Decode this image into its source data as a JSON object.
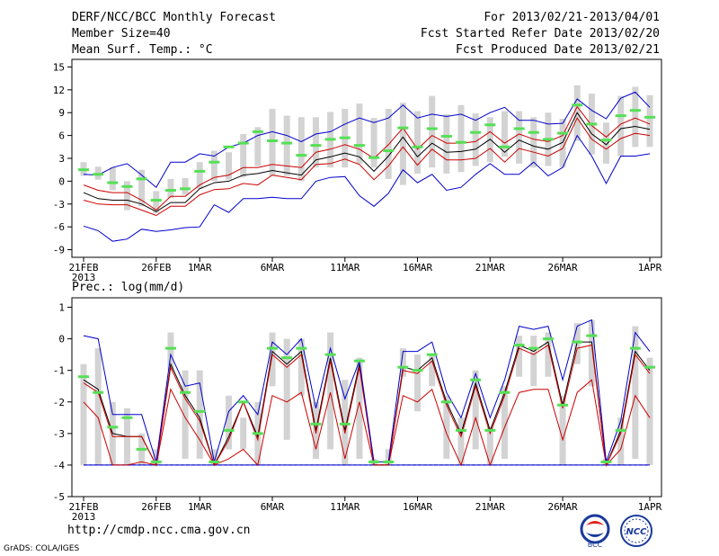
{
  "header": {
    "title": "DERF/NCC/BCC Monthly Forecast",
    "member_size": "Member Size=40",
    "variable": "Mean Surf. Temp.: °C",
    "for_period": "For 2013/02/21-2013/04/01",
    "fcst_started": "Fcst Started Refer Date 2013/02/20",
    "fcst_produced": "Fcst Produced Date 2013/02/21"
  },
  "footer": {
    "url": "http://cmdp.ncc.cma.gov.cn",
    "grads_credit": "GrADS: COLA/IGES",
    "logo_left_text": "BCC",
    "logo_right_text": "NCC"
  },
  "colors": {
    "box": "#d3d3d3",
    "median": "#55e055",
    "envelope": "#0000cc",
    "quartile": "#cc0000",
    "mean": "#000000",
    "baseline": "#0000cc"
  },
  "chart_data": [
    {
      "type": "box-ensemble",
      "title": "Mean Surf. Temp.: °C",
      "ylim": [
        -10,
        16
      ],
      "yticks": [
        -9,
        -6,
        -3,
        0,
        3,
        6,
        9,
        12,
        15
      ],
      "xlim": [
        0,
        40
      ],
      "xticks": [
        {
          "day": 0,
          "label": "21FEB",
          "sub": "2013"
        },
        {
          "day": 5,
          "label": "26FEB"
        },
        {
          "day": 8,
          "label": "1MAR"
        },
        {
          "day": 13,
          "label": "6MAR"
        },
        {
          "day": 18,
          "label": "11MAR"
        },
        {
          "day": 23,
          "label": "16MAR"
        },
        {
          "day": 28,
          "label": "21MAR"
        },
        {
          "day": 33,
          "label": "26MAR"
        },
        {
          "day": 39,
          "label": "1APR"
        }
      ],
      "box_low": [
        0.7,
        0.2,
        -1.2,
        -3.8,
        -3.3,
        -4.2,
        -2.2,
        -1.8,
        -1.0,
        0.0,
        0.2,
        0.5,
        2.0,
        0.7,
        0.7,
        0.0,
        1.8,
        1.8,
        1.8,
        2.3,
        1.8,
        0.3,
        -0.5,
        1.0,
        1.8,
        1.0,
        1.2,
        2.0,
        2.5,
        3.2,
        2.3,
        1.8,
        2.0,
        1.8,
        5.3,
        3.5,
        2.3,
        3.3,
        4.5,
        4.5
      ],
      "box_high": [
        2.5,
        1.9,
        1.8,
        0.0,
        1.5,
        -1.3,
        0.3,
        0.4,
        2.5,
        4.0,
        3.8,
        6.2,
        7.1,
        9.5,
        8.6,
        8.4,
        8.4,
        9.1,
        9.5,
        10.2,
        8.3,
        9.5,
        10.3,
        9.2,
        11.2,
        8.8,
        10.0,
        8.9,
        8.4,
        9.2,
        9.2,
        8.4,
        9.0,
        8.2,
        12.6,
        11.5,
        7.7,
        11.2,
        12.4,
        11.3
      ],
      "median": [
        1.5,
        0.9,
        -0.2,
        -0.7,
        0.3,
        -2.5,
        -1.2,
        -1.0,
        1.3,
        2.5,
        4.5,
        5.0,
        6.5,
        5.3,
        5.0,
        3.4,
        4.7,
        5.5,
        5.7,
        4.7,
        3.1,
        4.0,
        7.0,
        4.5,
        6.9,
        5.9,
        5.1,
        6.4,
        7.4,
        4.5,
        6.9,
        6.4,
        5.5,
        6.3,
        10.0,
        7.5,
        5.4,
        8.6,
        9.3,
        8.4
      ],
      "max_env": [
        0.9,
        0.8,
        1.8,
        2.3,
        0.8,
        -0.8,
        2.5,
        2.5,
        3.6,
        3.3,
        4.5,
        5.0,
        6.0,
        6.5,
        6.0,
        5.2,
        6.2,
        6.5,
        7.5,
        8.3,
        7.7,
        8.3,
        10.0,
        8.3,
        8.8,
        8.5,
        8.8,
        8.0,
        9.0,
        9.7,
        8.0,
        8.0,
        7.5,
        7.6,
        10.8,
        9.3,
        8.2,
        10.9,
        11.7,
        9.7
      ],
      "upper_q": [
        -0.5,
        -1.2,
        -1.5,
        -1.5,
        -2.5,
        -3.8,
        -2.0,
        -2.0,
        -0.5,
        0.5,
        0.8,
        1.8,
        1.8,
        2.2,
        2.0,
        1.8,
        3.8,
        4.2,
        4.8,
        4.2,
        3.0,
        4.8,
        7.0,
        4.2,
        6.0,
        5.0,
        5.0,
        5.2,
        6.5,
        5.0,
        6.2,
        5.5,
        5.2,
        6.0,
        9.8,
        7.3,
        5.8,
        7.5,
        8.3,
        7.5
      ],
      "mean": [
        -1.5,
        -2.3,
        -2.5,
        -2.5,
        -3.0,
        -4.0,
        -2.8,
        -2.8,
        -1.0,
        -0.2,
        0.0,
        0.8,
        1.0,
        1.4,
        1.1,
        0.8,
        2.8,
        3.2,
        3.7,
        3.2,
        1.3,
        3.3,
        5.8,
        3.2,
        5.0,
        3.8,
        3.9,
        4.2,
        5.5,
        3.8,
        5.4,
        4.6,
        4.2,
        5.1,
        9.0,
        6.2,
        4.8,
        6.9,
        7.2,
        6.8
      ],
      "lower_q": [
        -2.5,
        -3.0,
        -3.1,
        -3.1,
        -3.8,
        -4.5,
        -3.3,
        -3.3,
        -1.8,
        -1.1,
        -1.0,
        -0.3,
        -0.5,
        0.8,
        0.5,
        0.2,
        2.2,
        2.3,
        2.9,
        2.2,
        0.2,
        2.0,
        4.5,
        2.1,
        4.2,
        2.8,
        2.8,
        3.0,
        4.3,
        2.5,
        4.3,
        3.8,
        3.3,
        4.3,
        8.3,
        5.5,
        4.2,
        5.6,
        6.3,
        6.0
      ],
      "min_env": [
        -5.9,
        -6.5,
        -7.9,
        -7.6,
        -6.3,
        -6.6,
        -6.4,
        -6.1,
        -6.0,
        -3.1,
        -4.1,
        -2.3,
        -2.3,
        -2.1,
        -2.3,
        -2.3,
        0.0,
        0.5,
        0.6,
        -1.9,
        -3.3,
        -1.6,
        1.5,
        -0.2,
        0.9,
        -1.2,
        -0.8,
        0.9,
        2.3,
        0.9,
        0.9,
        2.5,
        0.7,
        1.8,
        6.0,
        3.3,
        -0.3,
        3.3,
        3.3,
        3.6
      ]
    },
    {
      "type": "box-ensemble",
      "title": "Prec.: log(mm/d)",
      "ylim": [
        -5,
        1.3
      ],
      "yticks": [
        -5,
        -4,
        -3,
        -2,
        -1,
        0,
        1
      ],
      "xlim": [
        0,
        40
      ],
      "xticks": [
        {
          "day": 0,
          "label": "21FEB",
          "sub": "2013"
        },
        {
          "day": 5,
          "label": "26FEB"
        },
        {
          "day": 8,
          "label": "1MAR"
        },
        {
          "day": 13,
          "label": "6MAR"
        },
        {
          "day": 18,
          "label": "11MAR"
        },
        {
          "day": 23,
          "label": "16MAR"
        },
        {
          "day": 28,
          "label": "21MAR"
        },
        {
          "day": 33,
          "label": "26MAR"
        },
        {
          "day": 39,
          "label": "1APR"
        }
      ],
      "baseline": -4,
      "box_low": [
        -4,
        -4,
        -4,
        -4,
        -4,
        -4,
        -1.0,
        -3.8,
        -3.8,
        -4,
        -3.5,
        -3.5,
        -4,
        -1.5,
        -3.2,
        -1.8,
        -3.8,
        -3.5,
        -4,
        -3.8,
        -4,
        -4,
        -1.2,
        -2.3,
        -1.5,
        -3.8,
        -4,
        -3.5,
        -4,
        -3.8,
        -1.2,
        -1.5,
        -1.2,
        -4,
        -0.8,
        -1.5,
        -4,
        -4,
        -3.8,
        -4
      ],
      "box_high": [
        -0.8,
        -0.3,
        -2.0,
        -2.2,
        -3.0,
        -3.5,
        0.2,
        -1.0,
        -1.0,
        -3.5,
        -1.8,
        -2.5,
        -2.0,
        0.2,
        0.0,
        0.0,
        -2.0,
        0.2,
        -1.3,
        -0.6,
        -3.8,
        -3.5,
        -0.3,
        -0.5,
        -0.5,
        -1.8,
        -2.5,
        -1.0,
        -2.8,
        -1.5,
        0.1,
        0.1,
        0.2,
        -1.8,
        0.5,
        0.6,
        -3.8,
        -2.5,
        0.4,
        -0.6
      ],
      "median": [
        -1.2,
        -1.7,
        -2.8,
        -2.5,
        -3.5,
        -3.9,
        -0.3,
        -1.7,
        -2.3,
        -3.9,
        -2.9,
        -2.0,
        -3.0,
        -0.3,
        -0.6,
        -0.3,
        -2.7,
        -0.5,
        -2.7,
        -0.7,
        -3.9,
        -3.9,
        -0.9,
        -1.0,
        -0.5,
        -2.0,
        -2.9,
        -1.3,
        -2.9,
        -1.7,
        -0.2,
        -0.3,
        0.0,
        -2.1,
        -0.1,
        0.1,
        -3.9,
        -2.9,
        -0.3,
        -0.9
      ],
      "max_env": [
        0.1,
        0.0,
        -2.4,
        -2.4,
        -2.4,
        -3.9,
        -0.5,
        -1.5,
        -1.4,
        -3.9,
        -2.3,
        -1.8,
        -2.4,
        -0.1,
        -0.5,
        0.0,
        -2.2,
        -0.3,
        -1.9,
        -0.7,
        -3.9,
        -3.9,
        -0.4,
        -0.4,
        -0.1,
        -1.7,
        -2.5,
        -1.1,
        -2.5,
        -1.3,
        0.4,
        0.3,
        0.4,
        -1.3,
        0.4,
        0.6,
        -3.9,
        -2.6,
        0.2,
        -0.4
      ],
      "mean": [
        -1.3,
        -1.6,
        -3.0,
        -3.1,
        -3.1,
        -4.0,
        -0.8,
        -1.8,
        -2.5,
        -4.0,
        -3.1,
        -2.0,
        -3.1,
        -0.4,
        -0.8,
        -0.4,
        -2.9,
        -0.6,
        -2.9,
        -0.8,
        -4.0,
        -4.0,
        -0.9,
        -1.0,
        -0.6,
        -2.0,
        -3.0,
        -1.4,
        -2.9,
        -1.7,
        -0.2,
        -0.4,
        -0.1,
        -2.1,
        -0.1,
        -0.1,
        -4.0,
        -2.9,
        -0.4,
        -1.0
      ],
      "upper_q": [
        -1.4,
        -1.7,
        -3.1,
        -3.1,
        -3.1,
        -4.0,
        -0.9,
        -1.9,
        -2.6,
        -4.0,
        -3.2,
        -2.0,
        -3.2,
        -0.5,
        -0.9,
        -0.5,
        -3.0,
        -0.7,
        -3.0,
        -0.9,
        -4.0,
        -4.0,
        -1.0,
        -1.1,
        -0.7,
        -2.1,
        -3.1,
        -1.5,
        -3.0,
        -1.8,
        -0.3,
        -0.5,
        -0.2,
        -2.2,
        -0.3,
        -0.2,
        -4.0,
        -3.0,
        -0.5,
        -1.1
      ],
      "lower_q": [
        -2.0,
        -2.5,
        -4.0,
        -4.0,
        -3.9,
        -4.0,
        -1.6,
        -2.5,
        -3.2,
        -4.0,
        -3.8,
        -3.5,
        -4.0,
        -1.8,
        -2.0,
        -1.7,
        -3.5,
        -1.7,
        -3.8,
        -2.0,
        -4.0,
        -4.0,
        -1.8,
        -2.0,
        -1.6,
        -3.0,
        -4.0,
        -2.5,
        -4.0,
        -2.8,
        -1.7,
        -1.6,
        -1.6,
        -3.2,
        -1.7,
        -1.3,
        -4.0,
        -3.5,
        -1.8,
        -2.5
      ],
      "min_env": [
        -4,
        -4,
        -4,
        -4,
        -4,
        -4,
        -4,
        -4,
        -4,
        -4,
        -4,
        -4,
        -4,
        -4,
        -4,
        -4,
        -4,
        -4,
        -4,
        -4,
        -4,
        -4,
        -4,
        -4,
        -4,
        -4,
        -4,
        -4,
        -4,
        -4,
        -4,
        -4,
        -4,
        -4,
        -4,
        -4,
        -4,
        -4,
        -4,
        -4
      ]
    }
  ]
}
